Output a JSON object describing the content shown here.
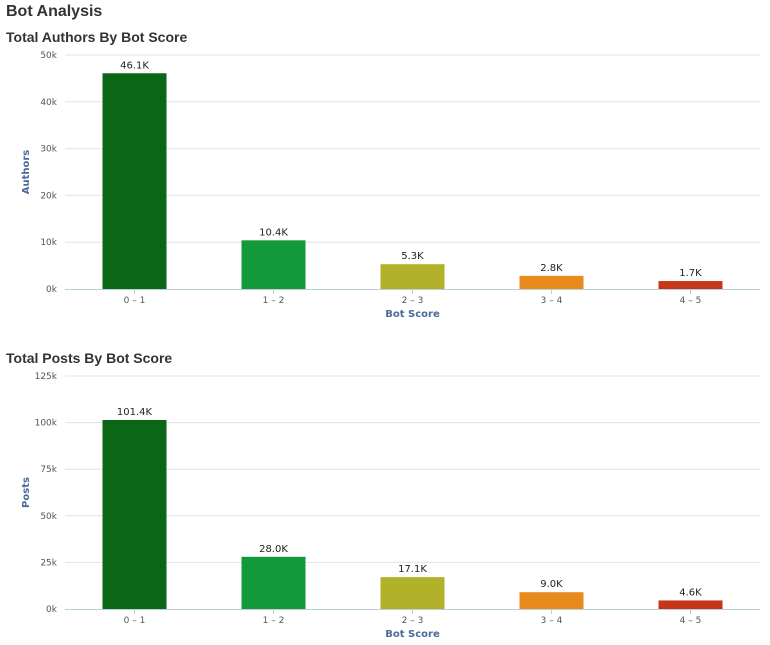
{
  "page": {
    "title": "Bot Analysis"
  },
  "chart_data": [
    {
      "type": "bar",
      "title": "Total Authors By Bot Score",
      "xlabel": "Bot Score",
      "ylabel": "Authors",
      "categories": [
        "0 – 1",
        "1 – 2",
        "2 – 3",
        "3 – 4",
        "4 – 5"
      ],
      "values": [
        46100,
        10400,
        5300,
        2800,
        1700
      ],
      "data_labels": [
        "46.1K",
        "10.4K",
        "5.3K",
        "2.8K",
        "1.7K"
      ],
      "colors": [
        "#0b6616",
        "#129a3a",
        "#b2b22a",
        "#e88a1c",
        "#c8361a"
      ],
      "ylim": [
        0,
        50000
      ],
      "yticks": [
        0,
        10000,
        20000,
        30000,
        40000,
        50000
      ],
      "ytick_labels": [
        "0k",
        "10k",
        "20k",
        "30k",
        "40k",
        "50k"
      ],
      "grid": true
    },
    {
      "type": "bar",
      "title": "Total Posts By Bot Score",
      "xlabel": "Bot Score",
      "ylabel": "Posts",
      "categories": [
        "0 – 1",
        "1 – 2",
        "2 – 3",
        "3 – 4",
        "4 – 5"
      ],
      "values": [
        101400,
        28000,
        17100,
        9000,
        4600
      ],
      "data_labels": [
        "101.4K",
        "28.0K",
        "17.1K",
        "9.0K",
        "4.6K"
      ],
      "colors": [
        "#0b6616",
        "#129a3a",
        "#b2b22a",
        "#e88a1c",
        "#c8361a"
      ],
      "ylim": [
        0,
        125000
      ],
      "yticks": [
        0,
        25000,
        50000,
        75000,
        100000,
        125000
      ],
      "ytick_labels": [
        "0k",
        "25k",
        "50k",
        "75k",
        "100k",
        "125k"
      ],
      "grid": true
    }
  ]
}
